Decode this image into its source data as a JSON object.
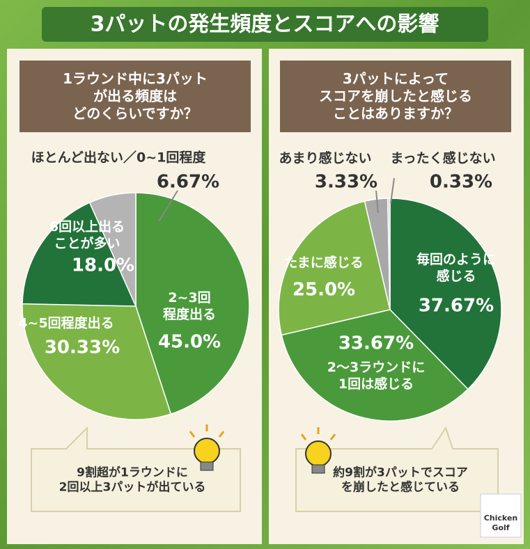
{
  "title": "3パットの発生頻度とスコアへの影響",
  "chart_data": [
    {
      "type": "pie",
      "title": "1ラウンド中に3パット\nが出る頻度は\nどのくらいですか？",
      "categories": [
        "2~3回\n程度出る",
        "4~5回程度出る",
        "6回以上出る\nことが多い",
        "ほとんど出ない／0~1回程度"
      ],
      "values": [
        45.0,
        30.33,
        18.0,
        6.67
      ],
      "value_labels": [
        "45.0%",
        "30.33%",
        "18.0%",
        "6.67%"
      ],
      "colors": [
        "#4a9a3c",
        "#7cb546",
        "#22733a",
        "#b4b4b4"
      ],
      "callout": "9割超が1ラウンドに\n2回以上3パットが出ている"
    },
    {
      "type": "pie",
      "title": "3パットによって\nスコアを崩したと感じる\nことはありますか？",
      "categories": [
        "毎回のように\n感じる",
        "2〜3ラウンドに\n1回は感じる",
        "たまに感じる",
        "あまり感じない",
        "まったく感じない"
      ],
      "values": [
        37.67,
        33.67,
        25.0,
        3.33,
        0.33
      ],
      "value_labels": [
        "37.67%",
        "33.67%",
        "25.0%",
        "3.33%",
        "0.33%"
      ],
      "colors": [
        "#22733a",
        "#4a9a3c",
        "#7cb546",
        "#a8a8a8",
        "#d2d2d2"
      ],
      "callout": "約9割が3パットでスコア\nを崩したと感じている"
    }
  ],
  "logo": "Chicken\nGolf"
}
